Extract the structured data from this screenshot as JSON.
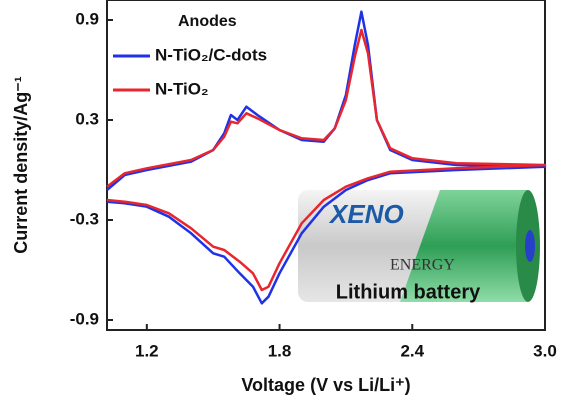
{
  "chart_data": {
    "type": "line",
    "ylabel": "Current density/Ag⁻¹",
    "xlabel": "Voltage (V vs Li/Li⁺)",
    "legend_title": "Anodes",
    "legend": "upper left",
    "xlim": [
      1.02,
      3.0
    ],
    "ylim": [
      -0.96,
      1.02
    ],
    "xticks": [
      1.2,
      1.8,
      2.4,
      {
        "value": 3,
        "label": "3.0"
      }
    ],
    "yticks": [
      0.9,
      0.3,
      -0.3,
      -0.9
    ],
    "series": [
      {
        "name": "N-TiO₂/C-dots",
        "color": "#1f32e8",
        "x": [
          1.02,
          1.1,
          1.2,
          1.4,
          1.5,
          1.55,
          1.58,
          1.61,
          1.65,
          1.7,
          1.8,
          1.9,
          2.0,
          2.05,
          2.1,
          2.14,
          2.17,
          2.2,
          2.24,
          2.3,
          2.4,
          2.6,
          3.0,
          2.6,
          2.3,
          2.2,
          2.1,
          2.0,
          1.9,
          1.8,
          1.75,
          1.72,
          1.68,
          1.62,
          1.55,
          1.5,
          1.4,
          1.3,
          1.2,
          1.1,
          1.02
        ],
        "values": [
          -0.12,
          -0.03,
          0.0,
          0.05,
          0.12,
          0.22,
          0.33,
          0.3,
          0.38,
          0.33,
          0.24,
          0.18,
          0.17,
          0.25,
          0.45,
          0.75,
          0.95,
          0.75,
          0.3,
          0.12,
          0.06,
          0.03,
          0.02,
          0.0,
          -0.02,
          -0.06,
          -0.12,
          -0.22,
          -0.38,
          -0.62,
          -0.76,
          -0.8,
          -0.7,
          -0.62,
          -0.52,
          -0.5,
          -0.38,
          -0.28,
          -0.22,
          -0.2,
          -0.19
        ]
      },
      {
        "name": "N-TiO₂",
        "color": "#e8262e",
        "x": [
          1.02,
          1.1,
          1.2,
          1.4,
          1.5,
          1.55,
          1.58,
          1.61,
          1.65,
          1.7,
          1.8,
          1.9,
          2.0,
          2.05,
          2.1,
          2.14,
          2.17,
          2.2,
          2.24,
          2.3,
          2.4,
          2.6,
          3.0,
          2.6,
          2.3,
          2.2,
          2.1,
          2.0,
          1.9,
          1.8,
          1.75,
          1.72,
          1.68,
          1.62,
          1.55,
          1.5,
          1.4,
          1.3,
          1.2,
          1.1,
          1.02
        ],
        "values": [
          -0.1,
          -0.02,
          0.01,
          0.06,
          0.12,
          0.2,
          0.29,
          0.28,
          0.34,
          0.31,
          0.24,
          0.19,
          0.18,
          0.25,
          0.42,
          0.68,
          0.84,
          0.7,
          0.3,
          0.13,
          0.07,
          0.04,
          0.03,
          0.01,
          -0.01,
          -0.05,
          -0.1,
          -0.18,
          -0.32,
          -0.56,
          -0.7,
          -0.72,
          -0.62,
          -0.55,
          -0.48,
          -0.46,
          -0.35,
          -0.26,
          -0.21,
          -0.19,
          -0.18
        ]
      }
    ],
    "annotations": [
      "XENO",
      "ENERGY",
      "Lithium battery"
    ]
  }
}
